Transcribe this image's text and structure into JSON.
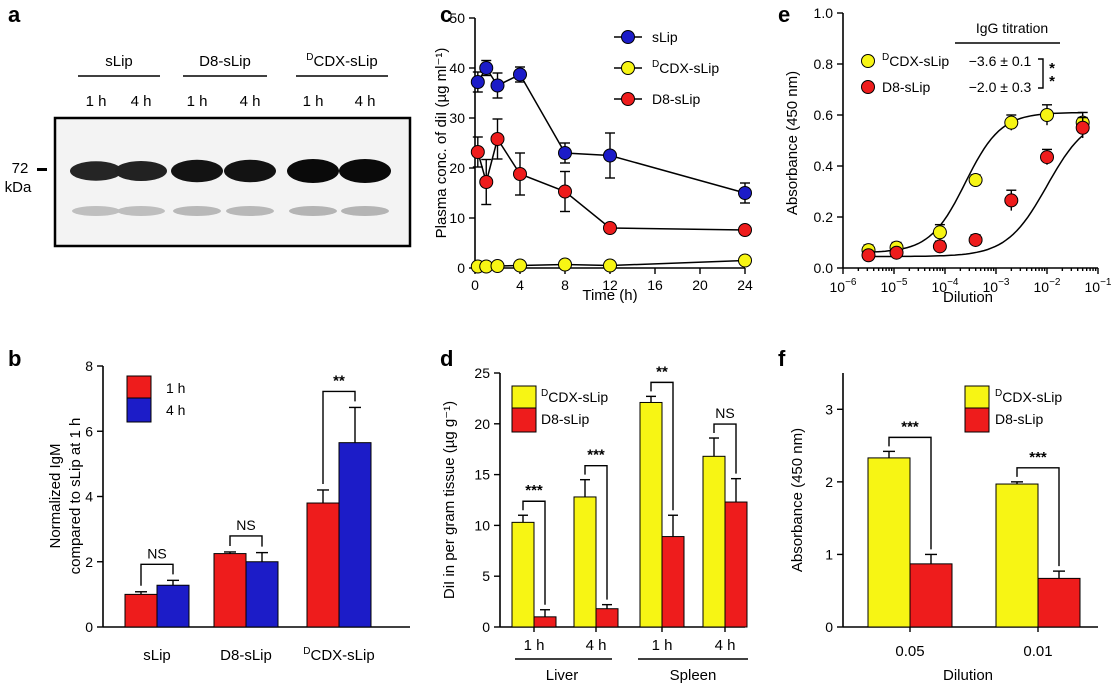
{
  "colors": {
    "red": "#ee1c1c",
    "blue": "#1c1cc8",
    "yellow": "#f7f514",
    "black": "#000000"
  },
  "chart_data": [
    {
      "panel": "a",
      "type": "gel",
      "group_labels": [
        "sLip",
        "D8-sLip",
        "CDX-sLip"
      ],
      "group_label_superscripts": [
        "",
        "",
        "D"
      ],
      "lane_labels": [
        "1 h",
        "4 h",
        "1 h",
        "4 h",
        "1 h",
        "4 h"
      ],
      "marker_value": "72",
      "marker_unit": "kDa",
      "band_intensity": [
        0.55,
        0.6,
        0.85,
        0.85,
        1.0,
        1.0
      ]
    },
    {
      "panel": "b",
      "type": "bar",
      "ylabel_lines": [
        "Normalized IgM",
        "compared to sLip at 1 h"
      ],
      "categories": [
        "sLip",
        "D8-sLip",
        "CDX-sLip"
      ],
      "category_superscripts": [
        "",
        "",
        "D"
      ],
      "ylim": [
        0,
        8
      ],
      "yticks": [
        "0",
        "2",
        "4",
        "6",
        "8"
      ],
      "series": [
        {
          "name": "1 h",
          "color": "#ee1c1c",
          "values": [
            1.0,
            2.25,
            3.8
          ],
          "errors": [
            0.08,
            0.05,
            0.4
          ]
        },
        {
          "name": "4 h",
          "color": "#1c1cc8",
          "values": [
            1.28,
            2.0,
            5.65
          ],
          "errors": [
            0.15,
            0.28,
            1.08
          ]
        }
      ],
      "significance": [
        "NS",
        "NS",
        "**"
      ]
    },
    {
      "panel": "c",
      "type": "line",
      "xlabel": "Time (h)",
      "ylabel": "Plasma conc. of diI (µg ml⁻¹)",
      "xlim": [
        0,
        24
      ],
      "ylim": [
        0,
        50
      ],
      "xticks": [
        "0",
        "4",
        "8",
        "12",
        "16",
        "20",
        "24"
      ],
      "yticks": [
        "0",
        "10",
        "20",
        "30",
        "40",
        "50"
      ],
      "series": [
        {
          "name": "sLip",
          "superscript": "",
          "color": "#1c1cc8",
          "x": [
            0.25,
            1,
            2,
            4,
            8,
            12,
            24
          ],
          "y": [
            37.2,
            40.0,
            36.5,
            38.7,
            23.0,
            22.5,
            15.0
          ],
          "errors": [
            2.0,
            1.5,
            2.5,
            1.5,
            2.0,
            4.5,
            2.0
          ]
        },
        {
          "name": "CDX-sLip",
          "superscript": "D",
          "color": "#f7f514",
          "x": [
            0.25,
            1,
            2,
            4,
            8,
            12,
            24
          ],
          "y": [
            0.3,
            0.3,
            0.4,
            0.5,
            0.7,
            0.5,
            1.5
          ],
          "errors": [
            0.2,
            0.2,
            0.2,
            0.3,
            0.4,
            0.3,
            0.6
          ]
        },
        {
          "name": "D8-sLip",
          "superscript": "",
          "color": "#ee1c1c",
          "x": [
            0.25,
            1,
            2,
            4,
            8,
            12,
            24
          ],
          "y": [
            23.2,
            17.2,
            25.8,
            18.8,
            15.3,
            8.0,
            7.6
          ],
          "errors": [
            3.0,
            4.5,
            4.0,
            4.2,
            4.0,
            0.6,
            0.8
          ]
        }
      ]
    },
    {
      "panel": "d",
      "type": "bar",
      "ylabel": "DiI in per gram tissue (µg g⁻¹)",
      "ylim": [
        0,
        25
      ],
      "yticks": [
        "0",
        "5",
        "10",
        "15",
        "20",
        "25"
      ],
      "categories": [
        "1 h",
        "4 h",
        "1 h",
        "4 h"
      ],
      "category_groups": [
        "Liver",
        "Spleen"
      ],
      "series": [
        {
          "name": "CDX-sLip",
          "superscript": "D",
          "color": "#f7f514",
          "values": [
            10.3,
            12.8,
            22.1,
            16.8
          ],
          "errors": [
            0.7,
            1.7,
            0.6,
            1.8
          ]
        },
        {
          "name": "D8-sLip",
          "superscript": "",
          "color": "#ee1c1c",
          "values": [
            1.0,
            1.8,
            8.9,
            12.3
          ],
          "errors": [
            0.7,
            0.4,
            2.1,
            2.3
          ]
        }
      ],
      "significance": [
        "***",
        "***",
        "**",
        "NS"
      ]
    },
    {
      "panel": "e",
      "type": "scatter",
      "xlabel": "Dilution",
      "ylabel": "Absorbance (450 nm)",
      "xscale": "log",
      "xlim_log10": [
        -6,
        -1
      ],
      "ylim": [
        0,
        1.0
      ],
      "yticks": [
        "0.0",
        "0.2",
        "0.4",
        "0.6",
        "0.8",
        "1.0"
      ],
      "xtick_exponents": [
        "−6",
        "−5",
        "−4",
        "−3",
        "−2",
        "−1"
      ],
      "annotation_title": "IgG titration",
      "series": [
        {
          "name": "CDX-sLip",
          "superscript": "D",
          "color": "#f7f514",
          "titer": "−3.6 ± 0.1",
          "log10_x": [
            -5.5,
            -4.95,
            -4.1,
            -3.4,
            -2.7,
            -2.0,
            -1.3
          ],
          "y": [
            0.07,
            0.08,
            0.14,
            0.345,
            0.57,
            0.6,
            0.57
          ],
          "errors": [
            0.02,
            0.02,
            0.03,
            0.02,
            0.03,
            0.04,
            0.04
          ]
        },
        {
          "name": "D8-sLip",
          "superscript": "",
          "color": "#ee1c1c",
          "titer": "−2.0 ± 0.3",
          "log10_x": [
            -5.5,
            -4.95,
            -4.1,
            -3.4,
            -2.7,
            -2.0,
            -1.3
          ],
          "y": [
            0.05,
            0.06,
            0.085,
            0.11,
            0.265,
            0.435,
            0.55
          ],
          "errors": [
            0.015,
            0.015,
            0.02,
            0.02,
            0.04,
            0.03,
            0.04
          ]
        }
      ],
      "significance": "**"
    },
    {
      "panel": "f",
      "type": "bar",
      "xlabel": "Dilution",
      "ylabel": "Absorbance (450 nm)",
      "ylim": [
        0,
        3.5
      ],
      "yticks": [
        "0",
        "1",
        "2",
        "3"
      ],
      "categories": [
        "0.05",
        "0.01"
      ],
      "series": [
        {
          "name": "CDX-sLip",
          "superscript": "D",
          "color": "#f7f514",
          "values": [
            2.33,
            1.97
          ],
          "errors": [
            0.09,
            0.03
          ]
        },
        {
          "name": "D8-sLip",
          "superscript": "",
          "color": "#ee1c1c",
          "values": [
            0.87,
            0.67
          ],
          "errors": [
            0.13,
            0.1
          ]
        }
      ],
      "significance": [
        "***",
        "***"
      ]
    }
  ]
}
